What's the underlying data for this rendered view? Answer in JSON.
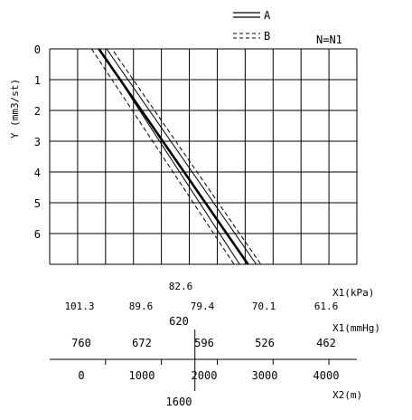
{
  "chart_data": {
    "type": "line",
    "ylabel": "Y (mm3/st)",
    "y_tick_labels": [
      "0",
      "1",
      "2",
      "3",
      "4",
      "5",
      "6"
    ],
    "ylim": [
      0,
      7
    ],
    "y_inverted": true,
    "legend": [
      {
        "key": "A",
        "style": "solid"
      },
      {
        "key": "B",
        "style": "dashed"
      }
    ],
    "legend_position": "top-right",
    "condition_label": "N=N1",
    "grid": true,
    "x2_label": "X2(m)",
    "x2_ticks": [
      "0",
      "1000",
      "2000",
      "3000",
      "4000"
    ],
    "x2_range": [
      -1000,
      4500
    ],
    "x1_mmhg_label": "X1(mmHg)",
    "x1_mmhg_ticks": [
      "760",
      "672",
      "596",
      "526",
      "462"
    ],
    "x1_kpa_label": "X1(kPa)",
    "x1_kpa_ticks": [
      "101.3",
      "89.6",
      "79.4",
      "70.1",
      "61.6"
    ],
    "marker": {
      "x2": 1600,
      "x2_label": "1600",
      "mmhg_label": "620",
      "kpa_label": "82.6"
    },
    "series": [
      {
        "name": "A",
        "style": "solid",
        "weight": "bold",
        "x2": [
          -120,
          2550
        ],
        "y": [
          0,
          7
        ]
      },
      {
        "name": "A",
        "style": "solid",
        "weight": "thin",
        "x2": [
          0,
          2400
        ],
        "y": [
          0.3,
          7
        ]
      },
      {
        "name": "A",
        "style": "solid",
        "weight": "thin",
        "x2": [
          0,
          2700
        ],
        "y": [
          -0.05,
          7
        ]
      },
      {
        "name": "B",
        "style": "dashed",
        "weight": "thin",
        "x2": [
          -250,
          2300
        ],
        "y": [
          0,
          7
        ]
      },
      {
        "name": "B",
        "style": "dashed",
        "weight": "thin",
        "x2": [
          0,
          2780
        ],
        "y": [
          -0.3,
          7
        ]
      }
    ]
  }
}
